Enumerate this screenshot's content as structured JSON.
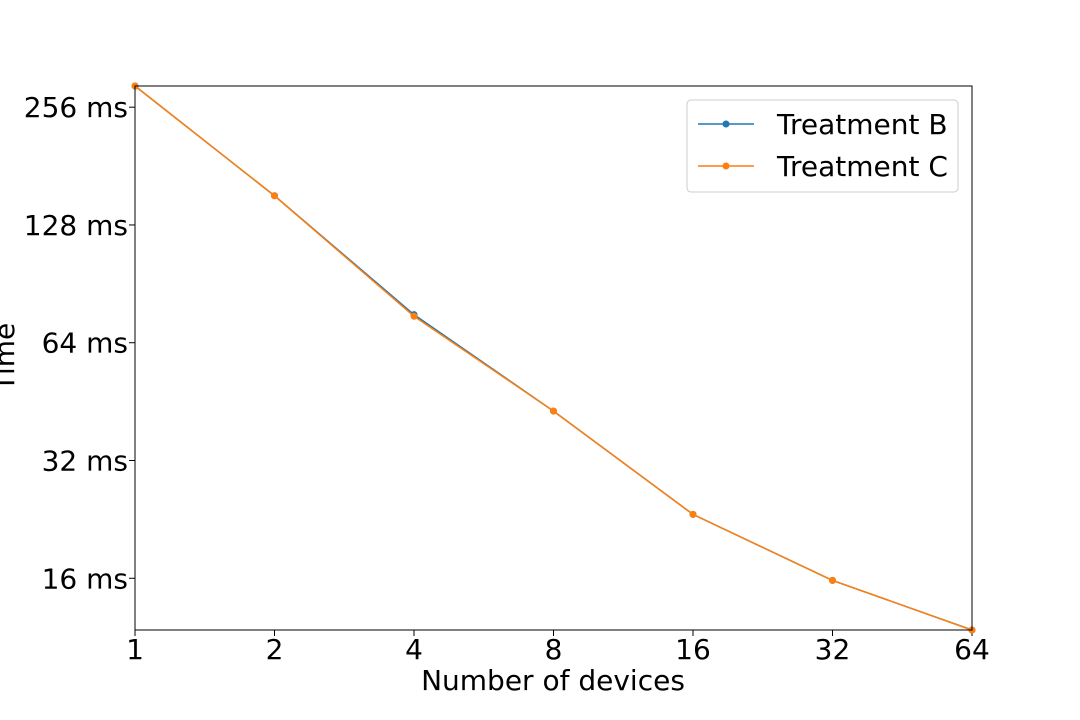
{
  "chart_data": {
    "type": "line",
    "xlabel": "Number of devices",
    "ylabel": "Time",
    "x_scale": "log2",
    "y_scale": "log2",
    "x": [
      1,
      2,
      4,
      8,
      16,
      32,
      64
    ],
    "xticks": [
      "1",
      "2",
      "4",
      "8",
      "16",
      "32",
      "64"
    ],
    "yticks": [
      {
        "value": 16,
        "label": "16 ms"
      },
      {
        "value": 32,
        "label": "32 ms"
      },
      {
        "value": 64,
        "label": "64 ms"
      },
      {
        "value": 128,
        "label": "128 ms"
      },
      {
        "value": 256,
        "label": "256 ms"
      }
    ],
    "xlim": [
      1,
      64
    ],
    "ylim": [
      11.8,
      290
    ],
    "grid": false,
    "legend_position": "top-right",
    "series": [
      {
        "name": "Treatment B",
        "color": "#1f77b4",
        "values": [
          290,
          152,
          75.5,
          42.8,
          23.3,
          15.8,
          11.8
        ]
      },
      {
        "name": "Treatment C",
        "color": "#ff7f0e",
        "values": [
          290,
          152,
          74.8,
          42.8,
          23.3,
          15.8,
          11.8
        ]
      }
    ]
  }
}
